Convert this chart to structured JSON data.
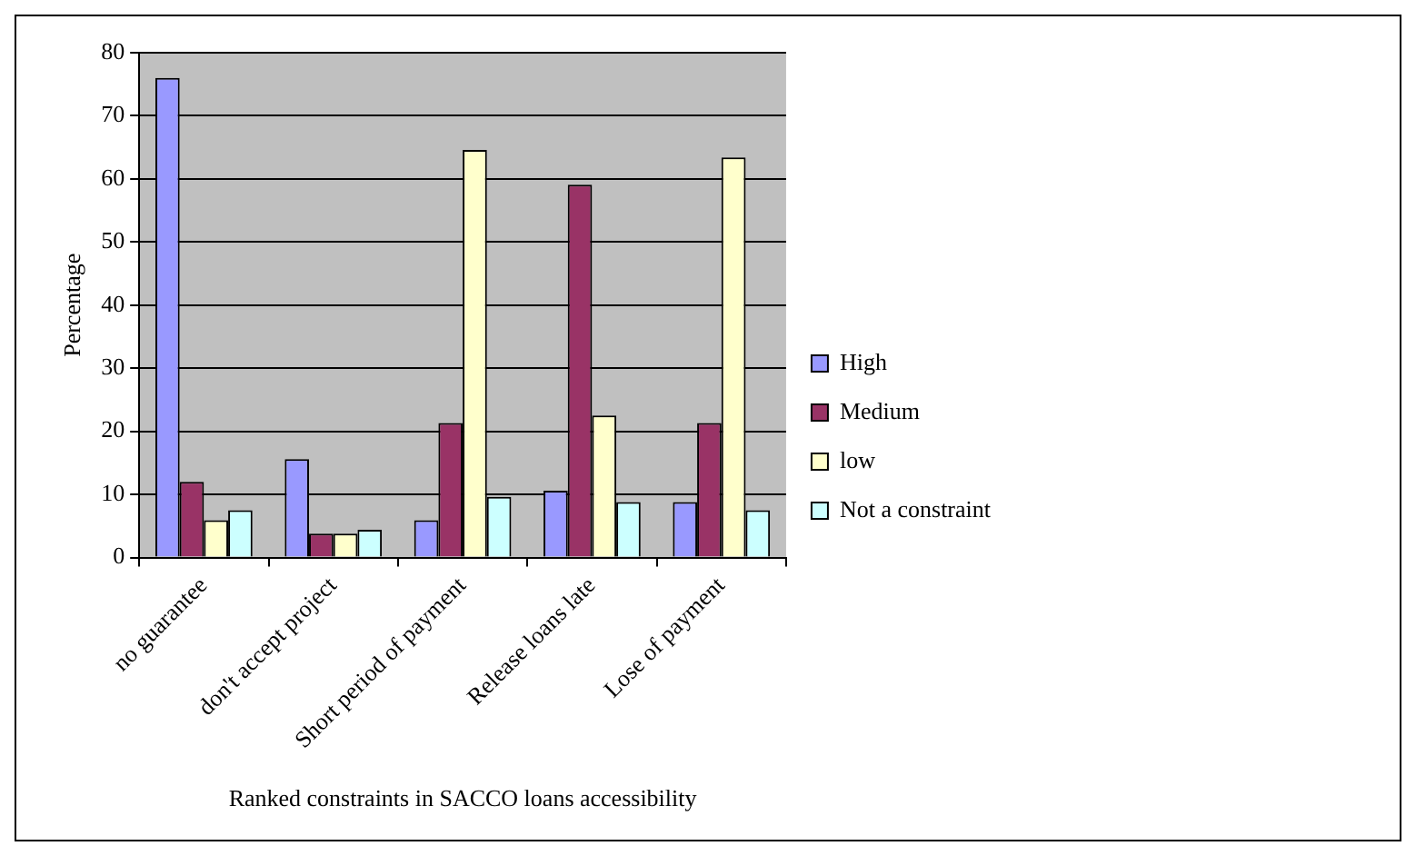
{
  "chart_data": {
    "type": "bar",
    "xlabel": "Ranked constraints in SACCO loans accessibility",
    "ylabel": "Percentage",
    "categories": [
      "no guarantee",
      "don't accept project",
      "Short period of payment",
      "Release loans late",
      "Lose of payment"
    ],
    "series": [
      {
        "name": "High",
        "color": "#9999ff",
        "values": [
          76,
          15.6,
          5.9,
          10.6,
          8.8
        ]
      },
      {
        "name": "Medium",
        "color": "#993366",
        "values": [
          12,
          3.8,
          21.3,
          59.1,
          21.3
        ]
      },
      {
        "name": "low",
        "color": "#ffffcc",
        "values": [
          5.9,
          3.8,
          64.6,
          22.5,
          63.4
        ]
      },
      {
        "name": "Not a constraint",
        "color": "#ccffff",
        "values": [
          7.5,
          4.4,
          9.6,
          8.8,
          7.5
        ]
      }
    ],
    "ylim": [
      0,
      80
    ],
    "yticks": [
      0,
      10,
      20,
      30,
      40,
      50,
      60,
      70,
      80
    ],
    "grid": "y",
    "legend": "right"
  }
}
